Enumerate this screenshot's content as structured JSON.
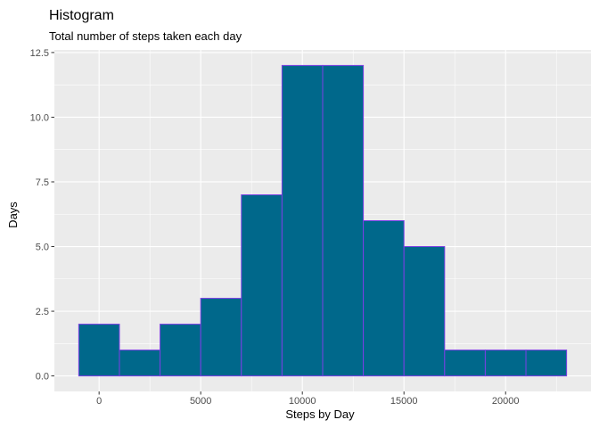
{
  "chart_data": {
    "type": "bar",
    "title": "Histogram",
    "subtitle": "Total number of steps taken each day",
    "xlabel": "Steps by Day",
    "ylabel": "Days",
    "bin_width": 2000,
    "bins": [
      {
        "start": -1000,
        "end": 1000,
        "count": 2
      },
      {
        "start": 1000,
        "end": 3000,
        "count": 1
      },
      {
        "start": 3000,
        "end": 5000,
        "count": 2
      },
      {
        "start": 5000,
        "end": 7000,
        "count": 3
      },
      {
        "start": 7000,
        "end": 9000,
        "count": 7
      },
      {
        "start": 9000,
        "end": 11000,
        "count": 12
      },
      {
        "start": 11000,
        "end": 13000,
        "count": 12
      },
      {
        "start": 13000,
        "end": 15000,
        "count": 6
      },
      {
        "start": 15000,
        "end": 17000,
        "count": 5
      },
      {
        "start": 17000,
        "end": 19000,
        "count": 1
      },
      {
        "start": 19000,
        "end": 21000,
        "count": 1
      },
      {
        "start": 21000,
        "end": 23000,
        "count": 1
      }
    ],
    "xlim": [
      -2200,
      24200
    ],
    "ylim": [
      -0.6,
      12.6
    ],
    "xticks": [
      {
        "value": 0,
        "label": "0"
      },
      {
        "value": 5000,
        "label": "5000"
      },
      {
        "value": 10000,
        "label": "10000"
      },
      {
        "value": 15000,
        "label": "15000"
      },
      {
        "value": 20000,
        "label": "20000"
      }
    ],
    "yticks": [
      {
        "value": 0,
        "label": "0.0"
      },
      {
        "value": 2.5,
        "label": "2.5"
      },
      {
        "value": 5,
        "label": "5.0"
      },
      {
        "value": 7.5,
        "label": "7.5"
      },
      {
        "value": 10,
        "label": "10.0"
      },
      {
        "value": 12.5,
        "label": "12.5"
      }
    ],
    "grid": true,
    "colors": {
      "panel": "#ebebeb",
      "grid_major": "#ffffff",
      "bar_fill": "#00688b",
      "bar_outline": "#7b3fe4",
      "tick_text": "#4d4d4d",
      "tick_mark": "#333333"
    }
  }
}
